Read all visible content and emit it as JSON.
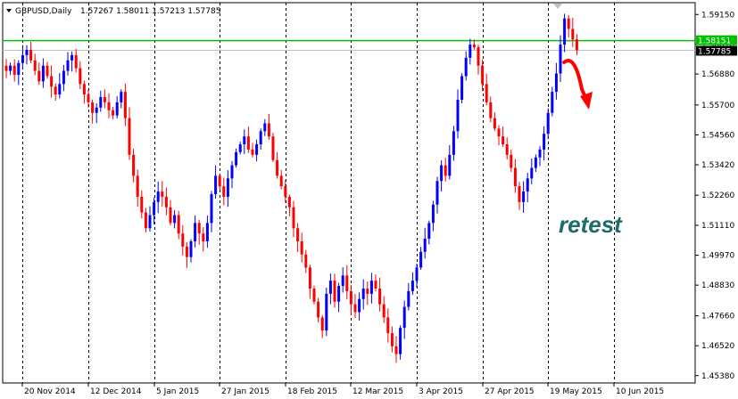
{
  "header": {
    "symbol": "GBPUSD,Daily",
    "ohlc": "1.57267 1.58011 1.57213 1.57785"
  },
  "colors": {
    "bull": "#0000ff",
    "bear": "#ff0000",
    "support": "#00c000",
    "current": "#c0c0c0",
    "annotation": "#1f6b6b",
    "arrow": "#ff0000"
  },
  "chart_data": {
    "type": "candlestick",
    "title": "GBPUSD,Daily",
    "grid": "vertical dotted lines at date labels",
    "y_axis_range": [
      1.451,
      1.596
    ],
    "y_ticks": [
      "1.59150",
      "1.58010",
      "1.56880",
      "1.55700",
      "1.54560",
      "1.53420",
      "1.52260",
      "1.51110",
      "1.49970",
      "1.48830",
      "1.47660",
      "1.46520",
      "1.45380"
    ],
    "x_ticks": [
      "20 Nov 2014",
      "12 Dec 2014",
      "5 Jan 2015",
      "27 Jan 2015",
      "18 Feb 2015",
      "12 Mar 2015",
      "3 Apr 2015",
      "27 Apr 2015",
      "19 May 2015",
      "10 Jun 2015"
    ],
    "x_tick_bar_index": [
      4,
      20,
      36,
      52,
      68,
      84,
      100,
      116,
      132,
      148
    ],
    "levels": [
      {
        "label": "1.58151",
        "value": 1.58151,
        "kind": "support-resistance"
      },
      {
        "label": "1.57785",
        "value": 1.57785,
        "kind": "current-price"
      }
    ],
    "annotation": "retest",
    "closes": [
      1.57,
      1.572,
      1.5685,
      1.573,
      1.576,
      1.578,
      1.574,
      1.57,
      1.566,
      1.572,
      1.568,
      1.564,
      1.561,
      1.565,
      1.57,
      1.574,
      1.576,
      1.571,
      1.565,
      1.561,
      1.558,
      1.554,
      1.556,
      1.56,
      1.558,
      1.555,
      1.553,
      1.558,
      1.562,
      1.552,
      1.538,
      1.53,
      1.522,
      1.516,
      1.51,
      1.515,
      1.52,
      1.524,
      1.522,
      1.518,
      1.512,
      1.515,
      1.508,
      1.503,
      1.499,
      1.505,
      1.512,
      1.508,
      1.505,
      1.512,
      1.523,
      1.53,
      1.526,
      1.522,
      1.529,
      1.534,
      1.539,
      1.542,
      1.545,
      1.54,
      1.538,
      1.542,
      1.547,
      1.55,
      1.545,
      1.536,
      1.53,
      1.526,
      1.522,
      1.518,
      1.51,
      1.505,
      1.5,
      1.495,
      1.487,
      1.482,
      1.476,
      1.471,
      1.485,
      1.49,
      1.482,
      1.488,
      1.492,
      1.486,
      1.481,
      1.478,
      1.483,
      1.487,
      1.485,
      1.49,
      1.487,
      1.481,
      1.476,
      1.47,
      1.465,
      1.462,
      1.472,
      1.48,
      1.486,
      1.49,
      1.495,
      1.501,
      1.506,
      1.512,
      1.519,
      1.528,
      1.534,
      1.53,
      1.538,
      1.547,
      1.559,
      1.568,
      1.575,
      1.58,
      1.579,
      1.572,
      1.565,
      1.558,
      1.552,
      1.548,
      1.545,
      1.542,
      1.538,
      1.533,
      1.526,
      1.52,
      1.524,
      1.529,
      1.533,
      1.537,
      1.54,
      1.546,
      1.554,
      1.562,
      1.569,
      1.58,
      1.59,
      1.586,
      1.582,
      1.5779
    ]
  },
  "support_label": "1.58151",
  "current_label": "1.57785",
  "annotation_text": "retest"
}
